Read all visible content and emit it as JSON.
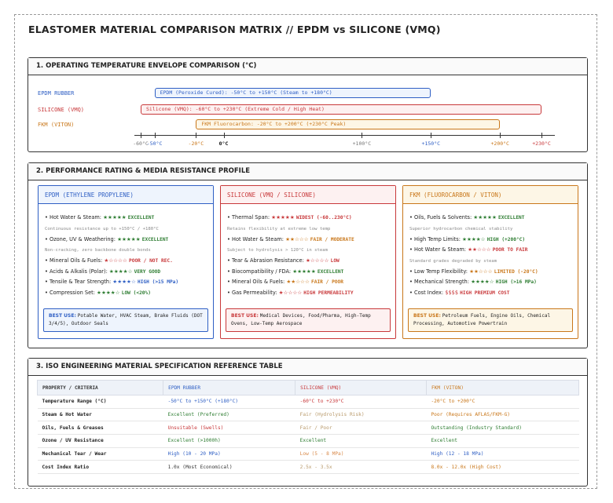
{
  "title": "ELASTOMER MATERIAL COMPARISON MATRIX // EPDM vs SILICONE (VMQ)",
  "temperature": {
    "title": "1. OPERATING TEMPERATURE ENVELOPE COMPARISON (°C)",
    "xlim": [
      -60,
      230
    ],
    "rows": [
      {
        "name": "EPDM RUBBER",
        "label": "EPDM (Peroxide Cured): -50°C to +150°C (Steam to +180°C)",
        "min": -50,
        "max": 150,
        "color": "#2f5fc4"
      },
      {
        "name": "SILICONE (VMQ)",
        "label": "Silicone (VMQ): -60°C to +230°C (Extreme Cold / High Heat)",
        "min": -60,
        "max": 230,
        "color": "#c8383a"
      },
      {
        "name": "FKM (VITON)",
        "label": "FKM Fluorocarbon: -20°C to +200°C (+230°C Peak)",
        "min": -20,
        "max": 200,
        "color": "#c9771a"
      }
    ],
    "ticks": [
      {
        "value": -60,
        "label": "-60°C",
        "color": "#777777"
      },
      {
        "value": -50,
        "label": "-50°C",
        "color": "#2f5fc4"
      },
      {
        "value": -20,
        "label": "-20°C",
        "color": "#c9771a"
      },
      {
        "value": 0,
        "label": "0°C",
        "color": "#111111"
      },
      {
        "value": 100,
        "label": "+100°C",
        "color": "#777777"
      },
      {
        "value": 150,
        "label": "+150°C",
        "color": "#2f5fc4"
      },
      {
        "value": 200,
        "label": "+200°C",
        "color": "#c9771a"
      },
      {
        "value": 230,
        "label": "+230°C",
        "color": "#c8383a"
      }
    ]
  },
  "performance": {
    "title": "2. PERFORMANCE RATING & MEDIA RESISTANCE PROFILE",
    "cards": [
      {
        "title": "EPDM (ETHYLENE PROPYLENE)",
        "color": "#2f5fc4",
        "background": "#eef4fd",
        "items": [
          {
            "label": "Hot Water & Steam:",
            "stars": "★★★★★",
            "rating": "EXCELLENT",
            "color": "#2e7d32",
            "note": "Continuous resistance up to +150°C / +180°C"
          },
          {
            "label": "Ozone, UV & Weathering:",
            "stars": "★★★★★",
            "rating": "EXCELLENT",
            "color": "#2e7d32",
            "note": "Non-cracking, zero backbone double bonds"
          },
          {
            "label": "Mineral Oils & Fuels:",
            "stars": "★☆☆☆☆",
            "rating": "POOR / NOT REC.",
            "color": "#c8383a"
          },
          {
            "label": "Acids & Alkalis (Polar):",
            "stars": "★★★★☆",
            "rating": "VERY GOOD",
            "color": "#2e7d32"
          },
          {
            "label": "Tensile & Tear Strength:",
            "stars": "★★★★☆",
            "rating": "HIGH (>15 MPa)",
            "color": "#2f5fc4"
          },
          {
            "label": "Compression Set:",
            "stars": "★★★★☆",
            "rating": "LOW (<20%)",
            "color": "#2e7d32"
          }
        ],
        "best_use_label": "BEST USE:",
        "best_use": "Potable Water, HVAC Steam, Brake Fluids (DOT 3/4/5), Outdoor Seals"
      },
      {
        "title": "SILICONE (VMQ / SILICONE)",
        "color": "#c8383a",
        "background": "#fdf1f1",
        "items": [
          {
            "label": "Thermal Span:",
            "stars": "★★★★★",
            "rating": "WIDEST (-60..230°C)",
            "color": "#c8383a",
            "note": "Retains flexibility at extreme low temp"
          },
          {
            "label": "Hot Water & Steam:",
            "stars": "★★☆☆☆",
            "rating": "FAIR / MODERATE",
            "color": "#c9771a",
            "note": "Subject to hydrolysis > 120°C in steam"
          },
          {
            "label": "Tear & Abrasion Resistance:",
            "stars": "★☆☆☆☆",
            "rating": "LOW",
            "color": "#c8383a"
          },
          {
            "label": "Biocompatibility / FDA:",
            "stars": "★★★★★",
            "rating": "EXCELLENT",
            "color": "#2e7d32"
          },
          {
            "label": "Mineral Oils & Fuels:",
            "stars": "★★☆☆☆",
            "rating": "FAIR / POOR",
            "color": "#c9771a"
          },
          {
            "label": "Gas Permeability:",
            "stars": "★☆☆☆☆",
            "rating": "HIGH PERMEABILITY",
            "color": "#c8383a"
          }
        ],
        "best_use_label": "BEST USE:",
        "best_use": "Medical Devices, Food/Pharma, High-Temp Ovens, Low-Temp Aerospace"
      },
      {
        "title": "FKM (FLUOROCARBON / VITON)",
        "color": "#c9771a",
        "background": "#fdf6e6",
        "items": [
          {
            "label": "Oils, Fuels & Solvents:",
            "stars": "★★★★★",
            "rating": "EXCELLENT",
            "color": "#2e7d32",
            "note": "Superior hydrocarbon chemical stability"
          },
          {
            "label": "High Temp Limits:",
            "stars": "★★★★☆",
            "rating": "HIGH (+200°C)",
            "color": "#2e7d32"
          },
          {
            "label": "Hot Water & Steam:",
            "stars": "★★☆☆☆",
            "rating": "POOR TO FAIR",
            "color": "#c8383a",
            "note": "Standard grades degraded by steam"
          },
          {
            "label": "Low Temp Flexibility:",
            "stars": "★★☆☆☆",
            "rating": "LIMITED (-20°C)",
            "color": "#c9771a"
          },
          {
            "label": "Mechanical Strength:",
            "stars": "★★★★☆",
            "rating": "HIGH (>16 MPa)",
            "color": "#2e7d32"
          },
          {
            "label": "Cost Index:",
            "stars": "$$$$",
            "rating": "HIGH PREMIUM COST",
            "color": "#c8383a"
          }
        ],
        "best_use_label": "BEST USE:",
        "best_use": "Petroleum Fuels, Engine Oils, Chemical Processing, Automotive Powertrain"
      }
    ]
  },
  "table": {
    "title": "3. ISO ENGINEERING MATERIAL SPECIFICATION REFERENCE TABLE",
    "header": [
      "PROPERTY / CRITERIA",
      "EPDM RUBBER",
      "SILICONE (VMQ)",
      "FKM (VITON)"
    ],
    "rows": [
      [
        "Temperature Range (°C)",
        "-50°C to +150°C (+180°C)",
        "-60°C to +230°C",
        "-20°C to +200°C"
      ],
      [
        "Steam & Hot Water",
        "Excellent (Preferred)",
        "Fair (Hydrolysis Risk)",
        "Poor (Requires AFLAS/FKM-G)"
      ],
      [
        "Oils, Fuels & Greases",
        "Unsuitable (Swells)",
        "Fair / Poor",
        "Outstanding (Industry Standard)"
      ],
      [
        "Ozone / UV Resistance",
        "Excellent (>1000h)",
        "Excellent",
        "Excellent"
      ],
      [
        "Mechanical Tear / Wear",
        "High (10 - 20 MPa)",
        "Low (5 - 8 MPa)",
        "High (12 - 18 MPa)"
      ],
      [
        "Cost Index Ratio",
        "1.0x (Most Economical)",
        "2.5x - 3.5x",
        "8.0x - 12.0x (High Cost)"
      ]
    ]
  }
}
